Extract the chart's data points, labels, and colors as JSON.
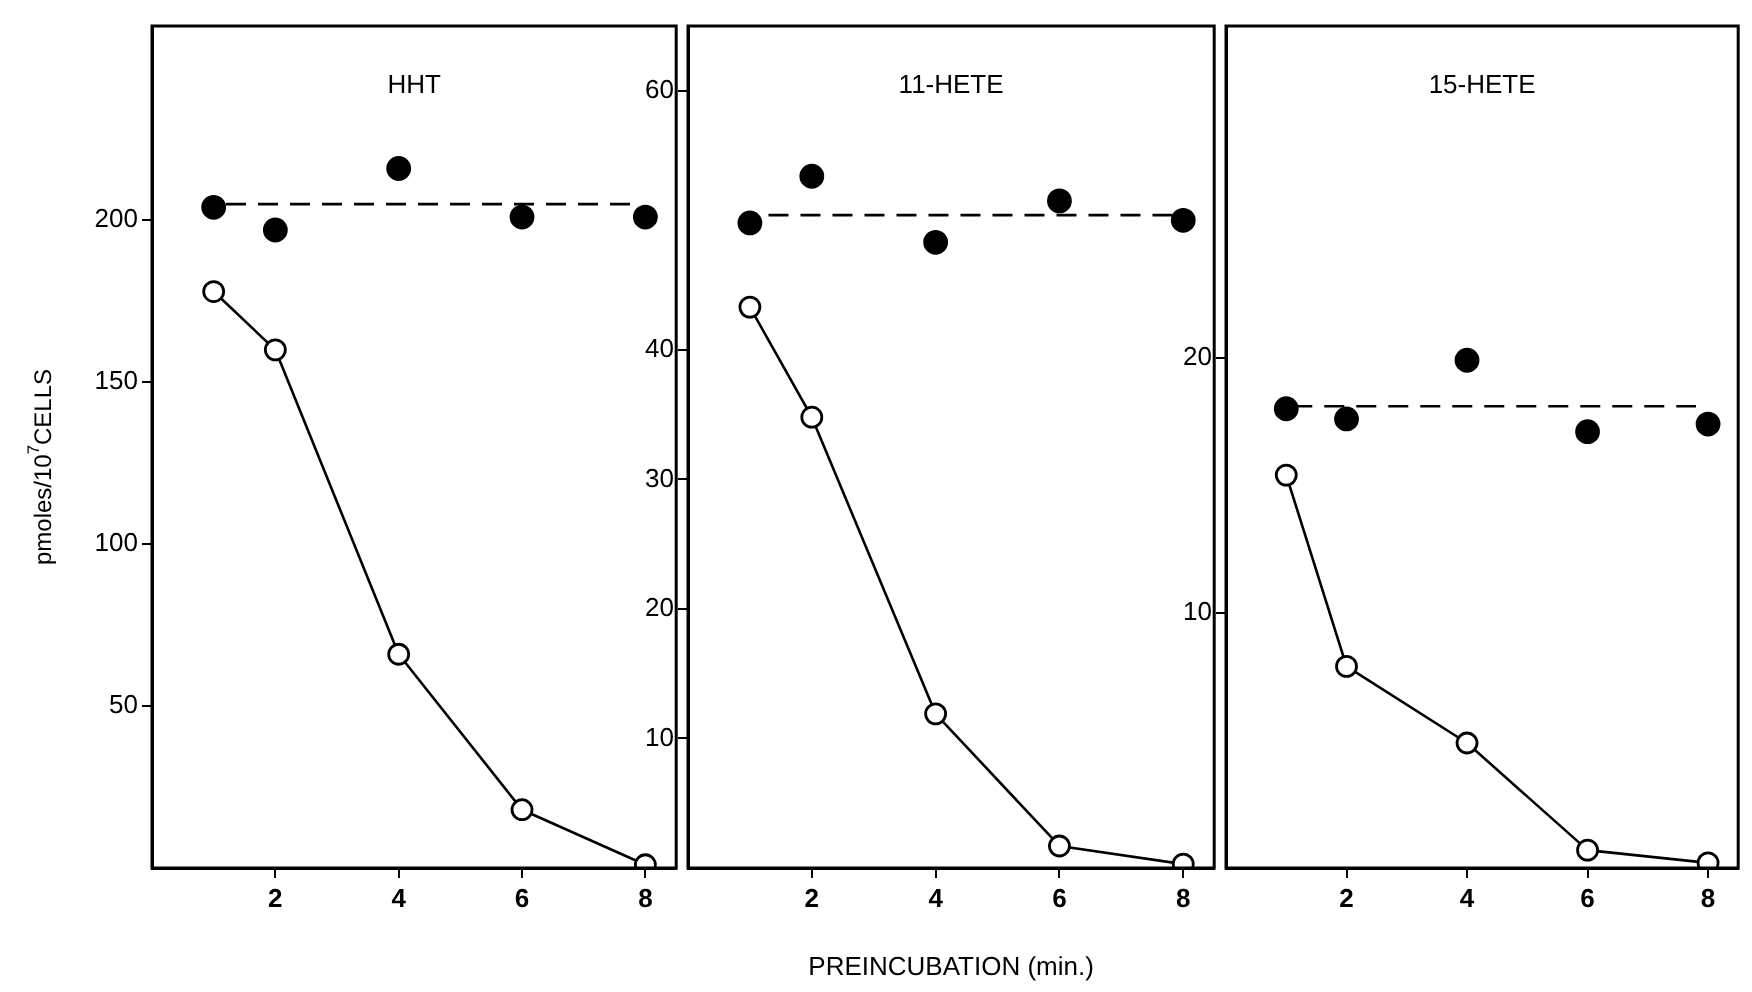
{
  "chart_data": [
    {
      "type": "line",
      "title": "HHT",
      "ylabel": "pmoles/10$^{7}$CELLS",
      "x": [
        1,
        2,
        4,
        6,
        8
      ],
      "xlim": [
        0,
        8.5
      ],
      "xticks": [
        2,
        4,
        6,
        8
      ],
      "ylim": [
        0,
        260
      ],
      "yticks": [
        50,
        100,
        150,
        200
      ],
      "grid": false,
      "legend": false,
      "series": [
        {
          "type": "scatter",
          "color": "#000000",
          "marker": "circle",
          "values": [
            204,
            197,
            216,
            201,
            201
          ]
        },
        {
          "type": "line",
          "color": "#000000",
          "marker": "none",
          "line_style": "dashed",
          "x": [
            1.2,
            7.8
          ],
          "values": [
            205,
            205
          ]
        },
        {
          "type": "line",
          "color": "#000000",
          "marker": "circle",
          "line_style": "solid",
          "values": [
            178,
            160,
            66,
            18,
            1
          ]
        }
      ]
    },
    {
      "type": "line",
      "title": "11-HETE",
      "xlabel": "PREINCUBATION (min.)",
      "x": [
        1,
        2,
        4,
        6,
        8
      ],
      "xlim": [
        0,
        8.5
      ],
      "xticks": [
        2,
        4,
        6,
        8
      ],
      "ylim": [
        0,
        65
      ],
      "yticks": [
        10,
        20,
        30,
        40,
        60
      ],
      "grid": false,
      "legend": false,
      "series": [
        {
          "type": "scatter",
          "color": "#000000",
          "marker": "circle",
          "values": [
            49.8,
            53.4,
            48.3,
            51.5,
            50
          ]
        },
        {
          "type": "line",
          "color": "#000000",
          "marker": "none",
          "line_style": "dashed",
          "x": [
            1.3,
            7.9
          ],
          "values": [
            50.4,
            50.4
          ]
        },
        {
          "type": "line",
          "color": "#000000",
          "marker": "circle",
          "line_style": "solid",
          "values": [
            43.3,
            34.8,
            11.9,
            1.7,
            0.3
          ]
        }
      ]
    },
    {
      "type": "line",
      "title": "15-HETE",
      "x": [
        1,
        2,
        4,
        6,
        8
      ],
      "xlim": [
        0,
        8.5
      ],
      "xticks": [
        2,
        4,
        6,
        8
      ],
      "ylim": [
        0,
        33
      ],
      "yticks": [
        10,
        20
      ],
      "grid": false,
      "legend": false,
      "series": [
        {
          "type": "scatter",
          "color": "#000000",
          "marker": "circle",
          "values": [
            18,
            17.6,
            19.9,
            17.1,
            17.4
          ]
        },
        {
          "type": "line",
          "color": "#000000",
          "marker": "none",
          "line_style": "dashed",
          "x": [
            1.1,
            7.8
          ],
          "values": [
            18.1,
            18.1
          ]
        },
        {
          "type": "line",
          "color": "#000000",
          "marker": "circle",
          "line_style": "solid",
          "values": [
            15.4,
            7.9,
            4.9,
            0.7,
            0.2
          ]
        }
      ]
    }
  ]
}
